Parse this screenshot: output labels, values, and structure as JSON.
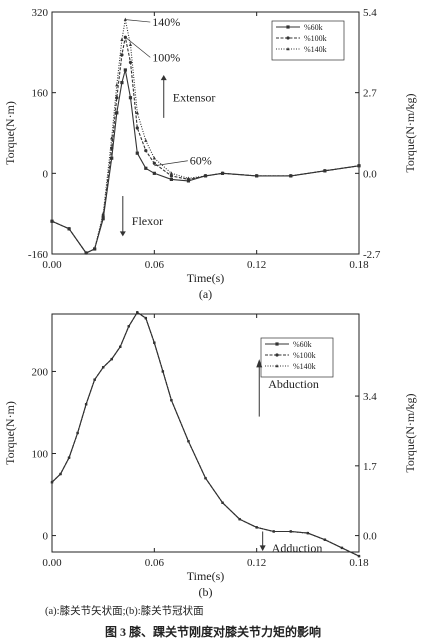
{
  "chart_data": [
    {
      "type": "line",
      "panel_label": "(a)",
      "xlabel": "Time(s)",
      "ylabel_left": "Torque(N·m)",
      "ylabel_right": "Torque(N·m/kg)",
      "xlim": [
        0,
        0.18
      ],
      "ylim": [
        -160,
        320
      ],
      "right_ylim": [
        -2.7,
        5.4
      ],
      "x_ticks": [
        0.0,
        0.06,
        0.12,
        0.18
      ],
      "x_tick_labels": [
        "0.00",
        "0.06",
        "0.12",
        "0.18"
      ],
      "y_ticks": [
        -160,
        0,
        160,
        320
      ],
      "y_tick_labels": [
        "-160",
        "0",
        "160",
        "320"
      ],
      "right_ticks": [
        -2.7,
        0.0,
        2.7,
        5.4
      ],
      "right_tick_labels": [
        "-2.7",
        "0.0",
        "2.7",
        "5.4"
      ],
      "legend_position": "top-right",
      "series": [
        {
          "name": "%60k",
          "marker": "square",
          "x": [
            0.0,
            0.01,
            0.02,
            0.025,
            0.03,
            0.035,
            0.038,
            0.041,
            0.043,
            0.046,
            0.05,
            0.055,
            0.06,
            0.07,
            0.08,
            0.09,
            0.1,
            0.12,
            0.14,
            0.16,
            0.18
          ],
          "y": [
            -95,
            -110,
            -158,
            -150,
            -90,
            30,
            120,
            180,
            205,
            150,
            40,
            10,
            0,
            -12,
            -15,
            -5,
            0,
            -5,
            -5,
            5,
            15
          ]
        },
        {
          "name": "%100k",
          "marker": "circle",
          "x": [
            0.0,
            0.01,
            0.02,
            0.025,
            0.03,
            0.035,
            0.038,
            0.041,
            0.043,
            0.046,
            0.05,
            0.055,
            0.06,
            0.07,
            0.08,
            0.09,
            0.1,
            0.12,
            0.14,
            0.16,
            0.18
          ],
          "y": [
            -95,
            -110,
            -158,
            -150,
            -85,
            50,
            150,
            235,
            270,
            220,
            90,
            45,
            20,
            -5,
            -12,
            -5,
            0,
            -5,
            -5,
            5,
            15
          ]
        },
        {
          "name": "%140k",
          "marker": "triangle",
          "x": [
            0.0,
            0.01,
            0.02,
            0.025,
            0.03,
            0.035,
            0.038,
            0.041,
            0.043,
            0.046,
            0.05,
            0.055,
            0.06,
            0.07,
            0.08,
            0.09,
            0.1,
            0.12,
            0.14,
            0.16,
            0.18
          ],
          "y": [
            -95,
            -110,
            -158,
            -150,
            -80,
            70,
            175,
            265,
            305,
            255,
            120,
            65,
            30,
            0,
            -10,
            -5,
            0,
            -5,
            -5,
            5,
            15
          ]
        }
      ],
      "annotations": [
        {
          "text": "140%",
          "x": 0.05,
          "y": 300
        },
        {
          "text": "100%",
          "x": 0.05,
          "y": 230
        },
        {
          "text": "60%",
          "x": 0.072,
          "y": 25
        },
        {
          "text": "Extensor",
          "x": 0.062,
          "y": 150
        },
        {
          "text": "Flexor",
          "x": 0.038,
          "y": -95
        }
      ]
    },
    {
      "type": "line",
      "panel_label": "(b)",
      "xlabel": "Time(s)",
      "ylabel_left": "Torque(N·m)",
      "ylabel_right": "Torque(N·m/kg)",
      "xlim": [
        0,
        0.18
      ],
      "ylim": [
        -20,
        270
      ],
      "right_ylim": [
        -0.4,
        5.4
      ],
      "x_ticks": [
        0.0,
        0.06,
        0.12,
        0.18
      ],
      "x_tick_labels": [
        "0.00",
        "0.06",
        "0.12",
        "0.18"
      ],
      "y_ticks": [
        0,
        100,
        200
      ],
      "y_tick_labels": [
        "0",
        "100",
        "200"
      ],
      "right_ticks": [
        0.0,
        1.7,
        3.4
      ],
      "right_tick_labels": [
        "0.0",
        "1.7",
        "3.4"
      ],
      "legend_position": "right",
      "series": [
        {
          "name": "%60k",
          "marker": "square",
          "x": [
            0.0,
            0.005,
            0.01,
            0.015,
            0.02,
            0.025,
            0.03,
            0.035,
            0.04,
            0.045,
            0.05,
            0.055,
            0.06,
            0.065,
            0.07,
            0.08,
            0.09,
            0.1,
            0.11,
            0.12,
            0.13,
            0.14,
            0.15,
            0.16,
            0.17,
            0.18
          ],
          "y": [
            65,
            75,
            95,
            125,
            160,
            190,
            205,
            215,
            230,
            255,
            272,
            265,
            235,
            200,
            165,
            115,
            70,
            40,
            20,
            10,
            5,
            5,
            3,
            -5,
            -15,
            -25
          ]
        },
        {
          "name": "%100k",
          "marker": "circle",
          "x": [
            0.0,
            0.005,
            0.01,
            0.015,
            0.02,
            0.025,
            0.03,
            0.035,
            0.04,
            0.045,
            0.05,
            0.055,
            0.06,
            0.065,
            0.07,
            0.08,
            0.09,
            0.1,
            0.11,
            0.12,
            0.13,
            0.14,
            0.15,
            0.16,
            0.17,
            0.18
          ],
          "y": [
            65,
            75,
            95,
            125,
            160,
            190,
            205,
            215,
            230,
            255,
            272,
            265,
            235,
            200,
            165,
            115,
            70,
            40,
            20,
            10,
            5,
            5,
            3,
            -5,
            -15,
            -25
          ]
        },
        {
          "name": "%140k",
          "marker": "triangle",
          "x": [
            0.0,
            0.005,
            0.01,
            0.015,
            0.02,
            0.025,
            0.03,
            0.035,
            0.04,
            0.045,
            0.05,
            0.055,
            0.06,
            0.065,
            0.07,
            0.08,
            0.09,
            0.1,
            0.11,
            0.12,
            0.13,
            0.14,
            0.15,
            0.16,
            0.17,
            0.18
          ],
          "y": [
            65,
            75,
            95,
            125,
            160,
            190,
            205,
            215,
            230,
            255,
            272,
            265,
            235,
            200,
            165,
            115,
            70,
            40,
            20,
            10,
            5,
            5,
            3,
            -5,
            -15,
            -25
          ]
        }
      ],
      "annotations": [
        {
          "text": "Abduction",
          "x": 0.118,
          "y": 185
        },
        {
          "text": "Adduction",
          "x": 0.12,
          "y": -15
        }
      ]
    }
  ],
  "caption": {
    "line1": "(a):膝关节矢状面;(b):膝关节冠状面",
    "title": "图 3  膝、踝关节刚度对膝关节力矩的影响"
  }
}
